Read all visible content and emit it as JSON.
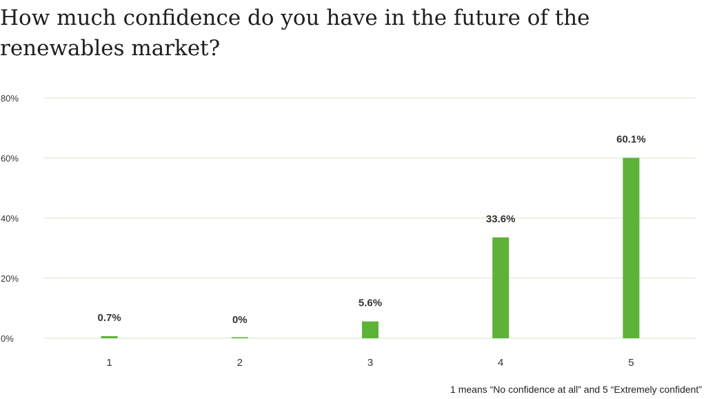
{
  "title": "How much confidence do you have in the future of the renewables market?",
  "footnote": "1 means “No confidence at all” and 5 “Extremely confident”",
  "colors": {
    "bar": "#5cb338",
    "grid": "#d7e6c4"
  },
  "chart_data": {
    "type": "bar",
    "title": "How much confidence do you have in the future of the renewables market?",
    "categories": [
      "1",
      "2",
      "3",
      "4",
      "5"
    ],
    "values": [
      0.7,
      0,
      5.6,
      33.6,
      60.1
    ],
    "data_labels": [
      "0.7%",
      "0%",
      "5.6%",
      "33.6%",
      "60.1%"
    ],
    "yticks": [
      0,
      20,
      40,
      60,
      80
    ],
    "ytick_labels": [
      "0%",
      "20%",
      "40%",
      "60%",
      "80%"
    ],
    "ylim": [
      0,
      80
    ],
    "xlabel": "",
    "ylabel": "",
    "grid": true,
    "legend": "none"
  }
}
